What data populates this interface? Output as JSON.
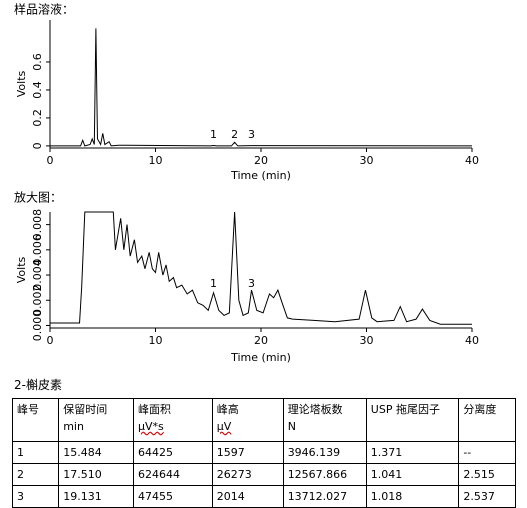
{
  "chart_data": [
    {
      "type": "line",
      "title": "样品溶液：",
      "xlabel": "Time (min)",
      "ylabel": "Volts",
      "xlim": [
        0,
        40
      ],
      "xticks": [
        0,
        10,
        20,
        30,
        40
      ],
      "ylim": [
        -0.015,
        0.9
      ],
      "yticks": [
        0,
        0.2,
        0.4,
        0.6
      ],
      "color": "#000000",
      "x": [
        0,
        2.9,
        3.1,
        3.3,
        3.8,
        4.0,
        4.2,
        4.35,
        4.5,
        4.8,
        5.0,
        5.2,
        5.6,
        5.8,
        6.5,
        15.2,
        15.5,
        15.8,
        17.2,
        17.5,
        17.8,
        19.1,
        40
      ],
      "values": [
        0,
        0,
        0.04,
        0,
        0.01,
        0.05,
        0.01,
        0.84,
        0.05,
        0.01,
        0.09,
        0.01,
        0.03,
        0,
        0.005,
        0,
        0.003,
        0,
        0,
        0.026,
        0,
        0.002,
        0
      ],
      "annotations": [
        {
          "text": "1",
          "x": 15.5
        },
        {
          "text": "2",
          "x": 17.5
        },
        {
          "text": "3",
          "x": 19.1
        }
      ]
    },
    {
      "type": "line",
      "title": "放大图：",
      "xlabel": "Time (min)",
      "ylabel": "Volts",
      "xlim": [
        0,
        40
      ],
      "xticks": [
        0,
        10,
        20,
        30,
        40
      ],
      "ylim": [
        -0.0002,
        0.009
      ],
      "yticks": [
        {
          "value": 0,
          "label": "0.000"
        },
        {
          "value": 0.002,
          "label": "0.002"
        },
        {
          "value": 0.004,
          "label": "0.004"
        },
        {
          "value": 0.006,
          "label": "0.006"
        },
        {
          "value": 0.008,
          "label": "0.008"
        }
      ],
      "color": "#000000",
      "x": [
        0,
        2.8,
        3.0,
        3.3,
        6.0,
        6.2,
        6.7,
        7.0,
        7.3,
        7.6,
        8.0,
        8.3,
        8.7,
        9.0,
        9.4,
        9.7,
        10.0,
        10.3,
        10.7,
        11.0,
        11.3,
        11.7,
        12.0,
        12.5,
        13.0,
        13.5,
        14.0,
        14.5,
        15.0,
        15.5,
        16.0,
        16.5,
        17.0,
        17.5,
        17.9,
        18.3,
        18.8,
        19.1,
        19.6,
        20.2,
        20.8,
        21.2,
        21.6,
        22.0,
        22.5,
        23.0,
        25.0,
        27.0,
        29.3,
        29.9,
        30.5,
        31.0,
        32.6,
        33.2,
        33.8,
        34.7,
        35.3,
        36.0,
        37.0,
        40.0
      ],
      "values": [
        0.0002,
        0.0002,
        0.003,
        0.009,
        0.009,
        0.006,
        0.0085,
        0.006,
        0.008,
        0.0055,
        0.0068,
        0.005,
        0.0055,
        0.0045,
        0.0058,
        0.0045,
        0.0042,
        0.0058,
        0.004,
        0.0048,
        0.0035,
        0.0038,
        0.003,
        0.0032,
        0.0025,
        0.0028,
        0.0018,
        0.0016,
        0.0012,
        0.0026,
        0.0012,
        0.0008,
        0.001,
        0.009,
        0.002,
        0.0008,
        0.001,
        0.0028,
        0.0012,
        0.001,
        0.0025,
        0.0022,
        0.0028,
        0.0018,
        0.0006,
        0.0005,
        0.0004,
        0.0003,
        0.0005,
        0.0028,
        0.0006,
        0.0003,
        0.0004,
        0.0015,
        0.0003,
        0.0005,
        0.0013,
        0.0004,
        0.0001,
        0.0001
      ],
      "annotations": [
        {
          "text": "1",
          "x": 15.5
        },
        {
          "text": "3",
          "x": 19.1
        }
      ]
    }
  ],
  "table": {
    "title": "2-槲皮素",
    "header": [
      [
        "峰号"
      ],
      [
        "保留时间",
        "min"
      ],
      [
        "峰面积",
        "μV*s"
      ],
      [
        "峰高",
        "μV"
      ],
      [
        "理论塔板数",
        "N"
      ],
      [
        "USP 拖尾因子"
      ],
      [
        "分离度"
      ]
    ],
    "rows": [
      [
        "1",
        "15.484",
        "64425",
        "1597",
        "3946.139",
        "1.371",
        "--"
      ],
      [
        "2",
        "17.510",
        "624644",
        "26273",
        "12567.866",
        "1.041",
        "2.515"
      ],
      [
        "3",
        "19.131",
        "47455",
        "2014",
        "13712.027",
        "1.018",
        "2.537"
      ]
    ]
  }
}
